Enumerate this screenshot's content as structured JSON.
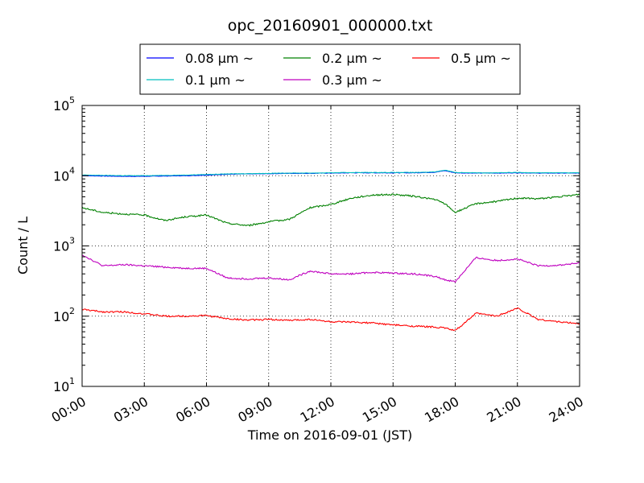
{
  "chart_data": {
    "type": "line",
    "title": "opc_20160901_000000.txt",
    "xlabel": "Time on 2016-09-01 (JST)",
    "ylabel": "Count / L",
    "xlim": [
      "00:00",
      "24:00"
    ],
    "ylim": [
      10,
      100000
    ],
    "yscale": "log",
    "grid": true,
    "legend_position": "top-center-outside",
    "x_ticks": [
      "00:00",
      "03:00",
      "06:00",
      "09:00",
      "12:00",
      "15:00",
      "18:00",
      "21:00",
      "24:00"
    ],
    "y_ticks": [
      {
        "value": 10,
        "base": "10",
        "exp": "1"
      },
      {
        "value": 100,
        "base": "10",
        "exp": "2"
      },
      {
        "value": 1000,
        "base": "10",
        "exp": "3"
      },
      {
        "value": 10000,
        "base": "10",
        "exp": "4"
      },
      {
        "value": 100000,
        "base": "10",
        "exp": "5"
      }
    ],
    "x_hours": [
      0,
      1,
      2,
      3,
      4,
      5,
      6,
      7,
      8,
      9,
      10,
      11,
      12,
      13,
      14,
      15,
      16,
      17,
      17.5,
      18,
      19,
      20,
      21,
      22,
      23,
      24
    ],
    "series": [
      {
        "name": "0.08 µm ~",
        "color": "#0000ff",
        "values": [
          10000,
          9900,
          9800,
          9800,
          9900,
          10000,
          10200,
          10500,
          10600,
          10700,
          10800,
          10800,
          10900,
          11000,
          11000,
          11000,
          11000,
          11200,
          11800,
          11000,
          10900,
          10900,
          11000,
          10900,
          10900,
          10900
        ]
      },
      {
        "name": "0.1 µm ~",
        "color": "#00bfbf",
        "values": [
          10200,
          10100,
          10000,
          10000,
          10100,
          10200,
          10400,
          10600,
          10700,
          10800,
          10900,
          10900,
          11000,
          11100,
          11100,
          11100,
          11100,
          11300,
          12000,
          11100,
          11000,
          11000,
          11100,
          11000,
          11000,
          11000
        ]
      },
      {
        "name": "0.2 µm ~",
        "color": "#008000",
        "values": [
          3500,
          3000,
          2850,
          2750,
          2300,
          2600,
          2750,
          2100,
          1950,
          2200,
          2400,
          3500,
          3900,
          4800,
          5300,
          5400,
          5100,
          4600,
          4000,
          3000,
          4000,
          4300,
          4800,
          4700,
          5000,
          5400
        ]
      },
      {
        "name": "0.3 µm ~",
        "color": "#bf00bf",
        "values": [
          750,
          520,
          540,
          520,
          500,
          480,
          480,
          350,
          340,
          350,
          330,
          440,
          400,
          400,
          420,
          410,
          400,
          370,
          330,
          310,
          680,
          620,
          650,
          520,
          530,
          570
        ]
      },
      {
        "name": "0.5 µm ~",
        "color": "#ff0000",
        "values": [
          125,
          115,
          115,
          108,
          100,
          100,
          102,
          92,
          88,
          90,
          87,
          90,
          83,
          82,
          80,
          75,
          72,
          70,
          68,
          62,
          110,
          100,
          130,
          90,
          83,
          78
        ]
      }
    ]
  }
}
